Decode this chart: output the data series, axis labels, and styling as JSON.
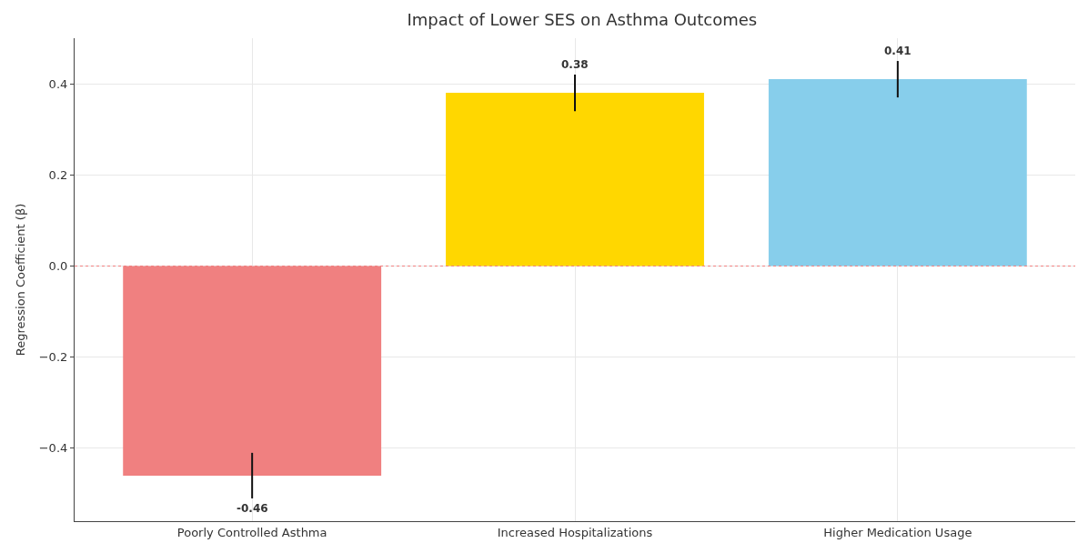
{
  "chart_data": {
    "type": "bar",
    "title": "Impact of Lower SES on Asthma Outcomes",
    "ylabel": "Regression Coefficient (β)",
    "categories": [
      "Poorly Controlled Asthma",
      "Increased Hospitalizations",
      "Higher Medication Usage"
    ],
    "values": [
      -0.46,
      0.38,
      0.41
    ],
    "colors": [
      "#f08080",
      "#ffd700",
      "#87ceeb"
    ],
    "errors": [
      0.05,
      0.04,
      0.04
    ],
    "data_labels": true,
    "ylim": [
      -0.56,
      0.5
    ],
    "yticks": [
      {
        "value": -0.4,
        "label": "−0.4"
      },
      {
        "value": -0.2,
        "label": "−0.2"
      },
      {
        "value": 0,
        "label": "0.0"
      },
      {
        "value": 0.2,
        "label": "0.2"
      },
      {
        "value": 0.4,
        "label": "0.4"
      }
    ],
    "ref_lines": [
      {
        "axis": "y",
        "value": 0,
        "color": "#f08080",
        "line_style": "dotted"
      }
    ],
    "grid": true
  }
}
